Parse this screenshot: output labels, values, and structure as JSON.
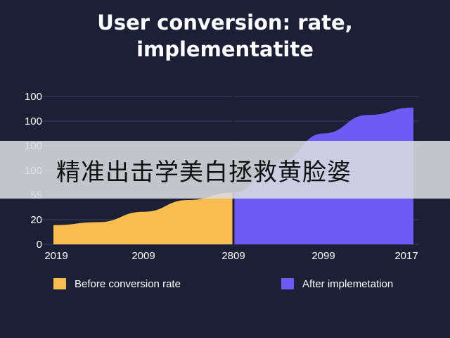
{
  "chart_data": {
    "type": "area",
    "title_lines": [
      "User conversion: rate,",
      "implementatite"
    ],
    "categories": [
      "2019",
      "2009",
      "2809",
      "2099",
      "2017"
    ],
    "y_ticks": [
      "0",
      "20",
      "55",
      "100",
      "100",
      "100",
      "100"
    ],
    "grid": true,
    "legend_position": "bottom",
    "series": [
      {
        "name": "Before conversion rate",
        "color": "#f9bd4f",
        "x": [
          0,
          0.5,
          1,
          1.5,
          2
        ],
        "values": [
          26,
          30,
          44,
          60,
          70
        ]
      },
      {
        "name": "After implemetation",
        "color": "#6c5bf5",
        "x": [
          2,
          2.5,
          3,
          3.5,
          4
        ],
        "values": [
          70,
          110,
          150,
          175,
          185
        ]
      }
    ]
  },
  "overlay": {
    "text": "精准出击学美白拯救黄脸婆"
  }
}
